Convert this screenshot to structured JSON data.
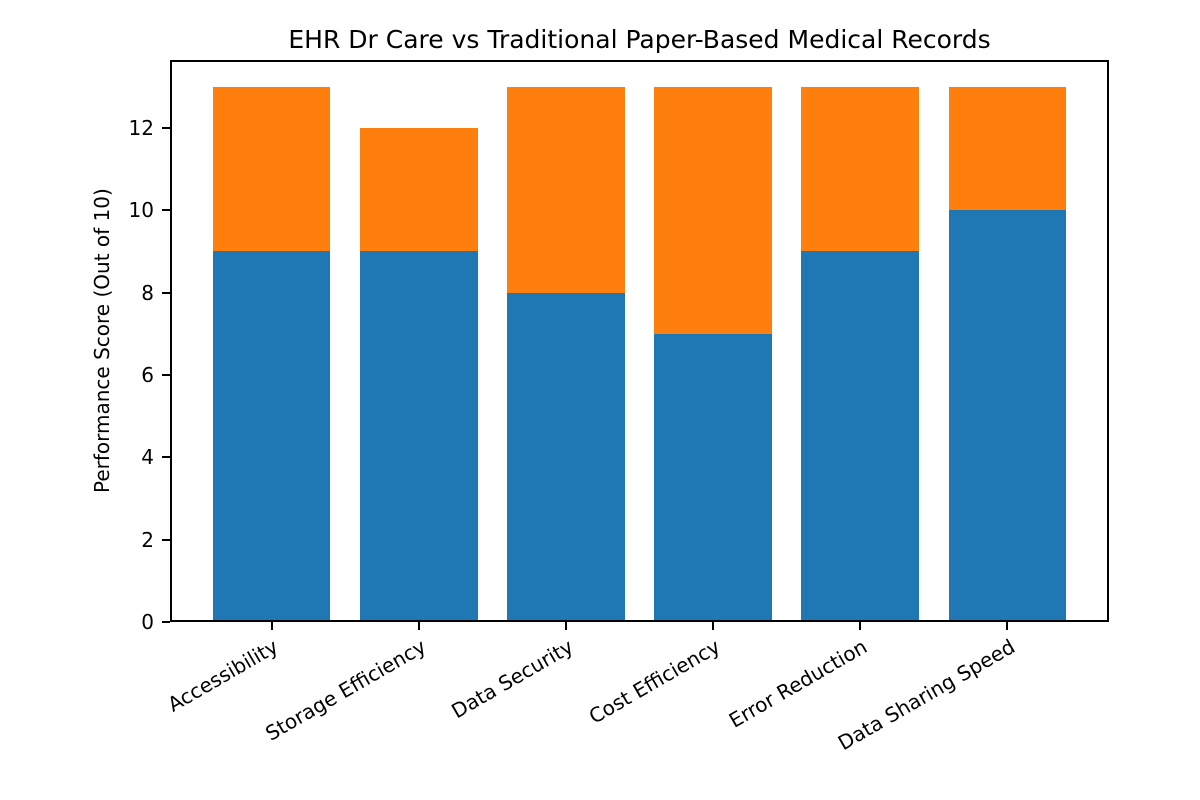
{
  "chart_data": {
    "type": "bar",
    "stacked": true,
    "title": "EHR Dr Care vs Traditional Paper-Based Medical Records",
    "categories": [
      "Accessibility",
      "Storage Efficiency",
      "Data Security",
      "Cost Efficiency",
      "Error Reduction",
      "Data Sharing Speed"
    ],
    "series": [
      {
        "name": "EHR Dr Care",
        "color": "#1f77b4",
        "values": [
          9,
          9,
          8,
          7,
          9,
          10
        ]
      },
      {
        "name": "Traditional Paper-Based Medical Records",
        "color": "#ff7f0e",
        "values": [
          4,
          3,
          5,
          6,
          4,
          3
        ]
      }
    ],
    "stack_totals": [
      13,
      12,
      13,
      13,
      13,
      13
    ],
    "xlabel": "",
    "ylabel": "Performance Score (Out of 10)",
    "ylim": [
      0,
      13.65
    ],
    "yticks": [
      0,
      2,
      4,
      6,
      8,
      10,
      12
    ],
    "bar_width_fraction": 0.8,
    "xtick_rotation_deg": 30,
    "grid": false,
    "legend": "none",
    "background_color": "#ffffff",
    "axis_color": "#000000"
  }
}
